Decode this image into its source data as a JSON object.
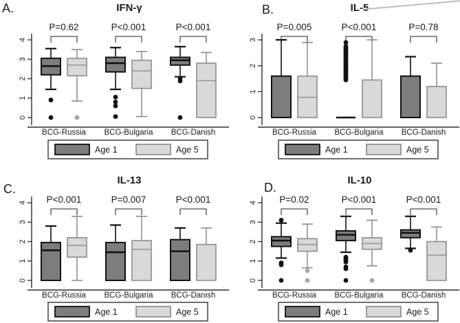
{
  "figure": {
    "description_labels": [
      "A.",
      "B.",
      "C.",
      "D."
    ]
  },
  "colors": {
    "age1_fill": "#7d7d7d",
    "age1_stroke": "#111111",
    "age5_fill": "#d9d9d9",
    "age5_stroke": "#919191",
    "age5_median": "#9a9a9a",
    "outlier_age1": "#111111",
    "outlier_age5": "#a8a8a8",
    "axis": "#2b2b2b",
    "bracket": "#4d4d4d",
    "text": "#1a1a1a",
    "legend_border": "#4d4d4d"
  },
  "chart_data": [
    {
      "type": "box",
      "panel_label": "A.",
      "title": "IFN-γ",
      "ylim": [
        0,
        4
      ],
      "yticks": [
        0,
        1,
        2,
        3,
        4
      ],
      "categories": [
        "BCG-Russia",
        "BCG-Bulgaria",
        "BCG-Danish"
      ],
      "p_values": [
        "P=0.62",
        "P<0.001",
        "P<0.001"
      ],
      "legend_position": "bottom",
      "series": [
        {
          "name": "Age 1",
          "boxes": [
            {
              "low": 1.45,
              "q1": 2.2,
              "med": 2.65,
              "q3": 3.05,
              "high": 3.55,
              "outliers": [
                0.9,
                0
              ]
            },
            {
              "low": 1.45,
              "q1": 2.35,
              "med": 2.8,
              "q3": 3.1,
              "high": 3.6,
              "outliers": [
                1.05,
                0.8,
                0.6,
                0.05
              ]
            },
            {
              "low": 2.1,
              "q1": 2.7,
              "med": 2.95,
              "q3": 3.1,
              "high": 3.65,
              "outliers": [
                2.0,
                1.88,
                0
              ]
            }
          ]
        },
        {
          "name": "Age 5",
          "boxes": [
            {
              "low": 0.85,
              "q1": 2.15,
              "med": 2.7,
              "q3": 3.05,
              "high": 3.5,
              "outliers": [
                0
              ]
            },
            {
              "low": 0.05,
              "q1": 1.5,
              "med": 2.4,
              "q3": 2.95,
              "high": 3.4,
              "outliers": []
            },
            {
              "low": 0,
              "q1": 0,
              "med": 1.9,
              "q3": 2.8,
              "high": 3.35,
              "outliers": []
            }
          ]
        }
      ]
    },
    {
      "type": "box",
      "panel_label": "B.",
      "title": "IL-5",
      "ylim": [
        0,
        3
      ],
      "yticks": [
        0,
        1,
        2,
        3
      ],
      "categories": [
        "BCG-Russia",
        "BCG-Bulgaria",
        "BCG-Danish"
      ],
      "p_values": [
        "P=0.005",
        "P<0.001",
        "P=0.78"
      ],
      "legend_position": "bottom",
      "series": [
        {
          "name": "Age 1",
          "boxes": [
            {
              "low": 0,
              "q1": 0,
              "med": null,
              "q3": 1.6,
              "high": 3.0,
              "outliers": []
            },
            {
              "low": 0,
              "q1": 0,
              "med": null,
              "q3": 0,
              "high": 0,
              "outliers": [
                2.9,
                2.75,
                2.7,
                2.65,
                2.6,
                2.55,
                2.5,
                2.45,
                2.4,
                2.35,
                2.3,
                2.25,
                2.2,
                2.15,
                2.1,
                2.05,
                2.0,
                1.95,
                1.9,
                1.85,
                1.8,
                1.75,
                1.7,
                1.65,
                1.6,
                1.55,
                1.5,
                1.45
              ]
            },
            {
              "low": 0,
              "q1": 0,
              "med": null,
              "q3": 1.6,
              "high": 2.35,
              "outliers": []
            }
          ]
        },
        {
          "name": "Age 5",
          "boxes": [
            {
              "low": 0,
              "q1": 0,
              "med": 0.78,
              "q3": 1.6,
              "high": 2.9,
              "outliers": []
            },
            {
              "low": 0,
              "q1": 0,
              "med": null,
              "q3": 1.45,
              "high": 3.0,
              "outliers": []
            },
            {
              "low": 0,
              "q1": 0,
              "med": null,
              "q3": 1.2,
              "high": 2.1,
              "outliers": []
            }
          ]
        }
      ]
    },
    {
      "type": "box",
      "panel_label": "C.",
      "title": "IL-13",
      "ylim": [
        0,
        4
      ],
      "yticks": [
        0,
        1,
        2,
        3,
        4
      ],
      "categories": [
        "BCG-Russia",
        "BCG-Bulgaria",
        "BCG-Danish"
      ],
      "p_values": [
        "P<0.001",
        "P=0.007",
        "P<0.001"
      ],
      "legend_position": "bottom",
      "series": [
        {
          "name": "Age 1",
          "boxes": [
            {
              "low": 0,
              "q1": 0,
              "med": 1.55,
              "q3": 1.95,
              "high": 2.8,
              "outliers": []
            },
            {
              "low": 0,
              "q1": 0,
              "med": 1.45,
              "q3": 1.95,
              "high": 2.85,
              "outliers": []
            },
            {
              "low": 0,
              "q1": 0,
              "med": 1.5,
              "q3": 2.1,
              "high": 2.7,
              "outliers": []
            }
          ]
        },
        {
          "name": "Age 5",
          "boxes": [
            {
              "low": 0,
              "q1": 1.2,
              "med": 1.8,
              "q3": 2.2,
              "high": 3.3,
              "outliers": []
            },
            {
              "low": 0,
              "q1": 0,
              "med": 1.6,
              "q3": 2.05,
              "high": 3.3,
              "outliers": []
            },
            {
              "low": 0,
              "q1": 0,
              "med": null,
              "q3": 1.85,
              "high": 2.7,
              "outliers": []
            }
          ]
        }
      ]
    },
    {
      "type": "box",
      "panel_label": "D.",
      "title": "IL-10",
      "ylim": [
        0,
        4
      ],
      "yticks": [
        0,
        1,
        2,
        3,
        4
      ],
      "categories": [
        "BCG-Russia",
        "BCG-Bulgaria",
        "BCG-Danish"
      ],
      "p_values": [
        "P=0.02",
        "P<0.001",
        "P<0.001"
      ],
      "legend_position": "bottom",
      "series": [
        {
          "name": "Age 1",
          "boxes": [
            {
              "low": 1.15,
              "q1": 1.75,
              "med": 2.05,
              "q3": 2.25,
              "high": 2.95,
              "outliers": [
                3.1,
                0.9,
                0.8,
                0
              ]
            },
            {
              "low": 1.45,
              "q1": 2.05,
              "med": 2.35,
              "q3": 2.55,
              "high": 3.3,
              "outliers": [
                1.2,
                1.12,
                1.04,
                0.95,
                0.7,
                0.6,
                0
              ]
            },
            {
              "low": 1.65,
              "q1": 2.2,
              "med": 2.45,
              "q3": 2.6,
              "high": 3.3,
              "outliers": [
                1.55
              ]
            }
          ]
        },
        {
          "name": "Age 5",
          "boxes": [
            {
              "low": 0.65,
              "q1": 1.5,
              "med": 1.85,
              "q3": 2.15,
              "high": 2.9,
              "outliers": [
                0.5,
                0
              ]
            },
            {
              "low": 0.75,
              "q1": 1.6,
              "med": 1.9,
              "q3": 2.2,
              "high": 3.1,
              "outliers": [
                0
              ]
            },
            {
              "low": 0,
              "q1": 0,
              "med": 1.3,
              "q3": 2.0,
              "high": 2.75,
              "outliers": []
            }
          ]
        }
      ]
    }
  ]
}
